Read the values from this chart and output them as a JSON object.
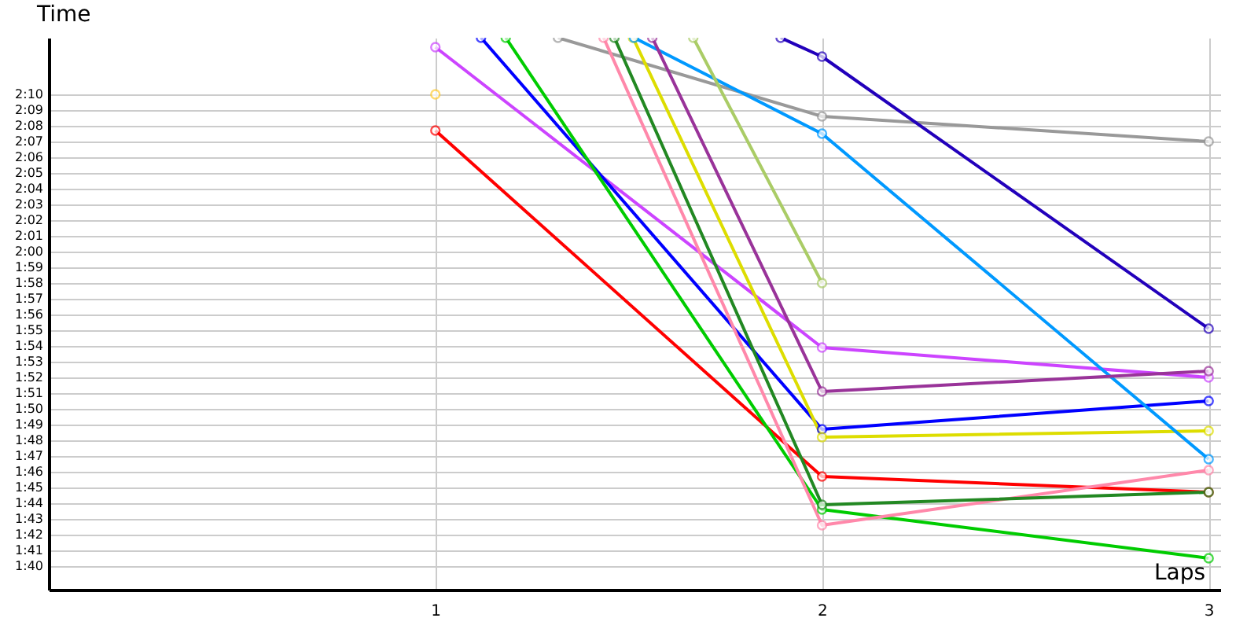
{
  "chart_data": {
    "type": "line",
    "xlabel": "Laps",
    "ylabel": "Time",
    "xlim": [
      0,
      3.03
    ],
    "xticks": [
      1,
      2,
      3
    ],
    "ylim": [
      98.5,
      133.6
    ],
    "yticks": [
      {
        "value": 100,
        "label": "1:40"
      },
      {
        "value": 101,
        "label": "1:41"
      },
      {
        "value": 102,
        "label": "1:42"
      },
      {
        "value": 103,
        "label": "1:43"
      },
      {
        "value": 104,
        "label": "1:44"
      },
      {
        "value": 105,
        "label": "1:45"
      },
      {
        "value": 106,
        "label": "1:46"
      },
      {
        "value": 107,
        "label": "1:47"
      },
      {
        "value": 108,
        "label": "1:48"
      },
      {
        "value": 109,
        "label": "1:49"
      },
      {
        "value": 110,
        "label": "1:50"
      },
      {
        "value": 111,
        "label": "1:51"
      },
      {
        "value": 112,
        "label": "1:52"
      },
      {
        "value": 113,
        "label": "1:53"
      },
      {
        "value": 114,
        "label": "1:54"
      },
      {
        "value": 115,
        "label": "1:55"
      },
      {
        "value": 116,
        "label": "1:56"
      },
      {
        "value": 117,
        "label": "1:57"
      },
      {
        "value": 118,
        "label": "1:58"
      },
      {
        "value": 119,
        "label": "1:59"
      },
      {
        "value": 120,
        "label": "2:00"
      },
      {
        "value": 121,
        "label": "2:01"
      },
      {
        "value": 122,
        "label": "2:02"
      },
      {
        "value": 123,
        "label": "2:03"
      },
      {
        "value": 124,
        "label": "2:04"
      },
      {
        "value": 125,
        "label": "2:05"
      },
      {
        "value": 126,
        "label": "2:06"
      },
      {
        "value": 127,
        "label": "2:07"
      },
      {
        "value": 128,
        "label": "2:08"
      },
      {
        "value": 129,
        "label": "2:09"
      },
      {
        "value": 130,
        "label": "2:10"
      }
    ],
    "grid": true,
    "marker": "circle",
    "line_style": "solid",
    "legend": false,
    "series": [
      {
        "color": "#ff0000",
        "x": [
          1,
          2,
          3
        ],
        "values": [
          127.7,
          105.7,
          104.7
        ]
      },
      {
        "color": "#cc44ff",
        "x": [
          1,
          2,
          3
        ],
        "values": [
          133.0,
          113.9,
          112.0
        ]
      },
      {
        "color": "#ffcc33",
        "x": [
          1
        ],
        "values": [
          130.0
        ]
      },
      {
        "color": "#0000ff",
        "x": [
          1.118,
          2,
          3
        ],
        "values": [
          133.6,
          108.7,
          110.5
        ]
      },
      {
        "color": "#00cc00",
        "x": [
          1.182,
          2,
          3
        ],
        "values": [
          133.6,
          103.6,
          100.5
        ]
      },
      {
        "color": "#999999",
        "x": [
          1.317,
          2,
          3
        ],
        "values": [
          133.6,
          128.6,
          127.0
        ]
      },
      {
        "color": "#ff88aa",
        "x": [
          1.435,
          2,
          3
        ],
        "values": [
          133.6,
          102.6,
          106.1
        ]
      },
      {
        "color": "#228822",
        "x": [
          1.463,
          2,
          3
        ],
        "values": [
          133.6,
          103.9,
          104.7
        ]
      },
      {
        "color": "#dddd00",
        "x": [
          1.511,
          2,
          3
        ],
        "values": [
          133.6,
          108.2,
          108.6
        ]
      },
      {
        "color": "#0099ff",
        "x": [
          1.514,
          2,
          3
        ],
        "values": [
          133.6,
          127.5,
          106.8
        ]
      },
      {
        "color": "#993399",
        "x": [
          1.561,
          2,
          3
        ],
        "values": [
          133.6,
          111.1,
          112.4
        ]
      },
      {
        "color": "#aacc66",
        "x": [
          1.667,
          2
        ],
        "values": [
          133.6,
          118.0
        ]
      },
      {
        "color": "#2200bb",
        "x": [
          1.893,
          2,
          3
        ],
        "values": [
          133.6,
          132.4,
          115.1
        ]
      }
    ]
  }
}
